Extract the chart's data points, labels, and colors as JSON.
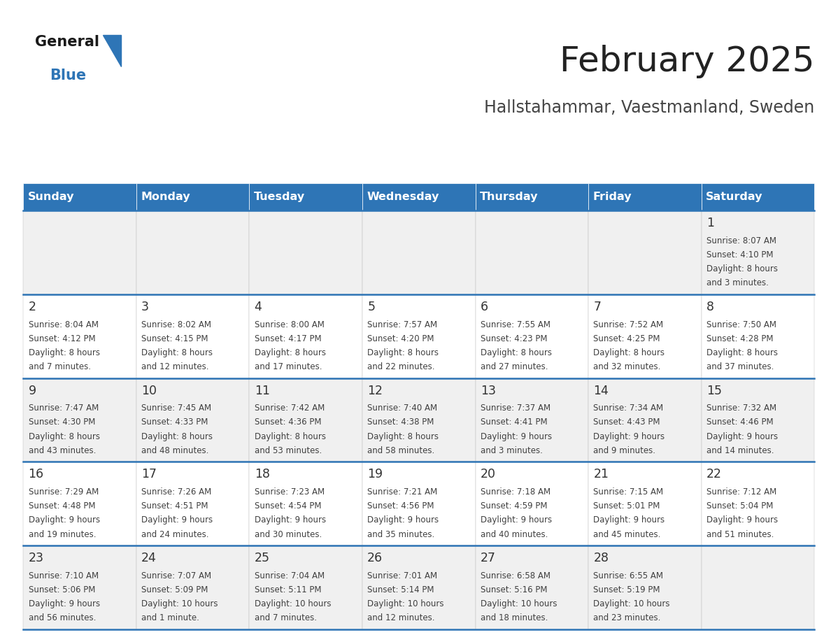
{
  "title": "February 2025",
  "subtitle": "Hallstahammar, Vaestmanland, Sweden",
  "days_of_week": [
    "Sunday",
    "Monday",
    "Tuesday",
    "Wednesday",
    "Thursday",
    "Friday",
    "Saturday"
  ],
  "header_bg": "#2E75B6",
  "header_text": "#FFFFFF",
  "row_bg_odd": "#FFFFFF",
  "row_bg_even": "#F0F0F0",
  "separator_color": "#2E75B6",
  "text_color": "#404040",
  "day_number_color": "#333333",
  "title_color": "#222222",
  "subtitle_color": "#444444",
  "calendar_data": [
    {
      "day": 1,
      "col": 6,
      "row": 0,
      "sunrise": "8:07 AM",
      "sunset": "4:10 PM",
      "daylight_line1": "8 hours",
      "daylight_line2": "and 3 minutes."
    },
    {
      "day": 2,
      "col": 0,
      "row": 1,
      "sunrise": "8:04 AM",
      "sunset": "4:12 PM",
      "daylight_line1": "8 hours",
      "daylight_line2": "and 7 minutes."
    },
    {
      "day": 3,
      "col": 1,
      "row": 1,
      "sunrise": "8:02 AM",
      "sunset": "4:15 PM",
      "daylight_line1": "8 hours",
      "daylight_line2": "and 12 minutes."
    },
    {
      "day": 4,
      "col": 2,
      "row": 1,
      "sunrise": "8:00 AM",
      "sunset": "4:17 PM",
      "daylight_line1": "8 hours",
      "daylight_line2": "and 17 minutes."
    },
    {
      "day": 5,
      "col": 3,
      "row": 1,
      "sunrise": "7:57 AM",
      "sunset": "4:20 PM",
      "daylight_line1": "8 hours",
      "daylight_line2": "and 22 minutes."
    },
    {
      "day": 6,
      "col": 4,
      "row": 1,
      "sunrise": "7:55 AM",
      "sunset": "4:23 PM",
      "daylight_line1": "8 hours",
      "daylight_line2": "and 27 minutes."
    },
    {
      "day": 7,
      "col": 5,
      "row": 1,
      "sunrise": "7:52 AM",
      "sunset": "4:25 PM",
      "daylight_line1": "8 hours",
      "daylight_line2": "and 32 minutes."
    },
    {
      "day": 8,
      "col": 6,
      "row": 1,
      "sunrise": "7:50 AM",
      "sunset": "4:28 PM",
      "daylight_line1": "8 hours",
      "daylight_line2": "and 37 minutes."
    },
    {
      "day": 9,
      "col": 0,
      "row": 2,
      "sunrise": "7:47 AM",
      "sunset": "4:30 PM",
      "daylight_line1": "8 hours",
      "daylight_line2": "and 43 minutes."
    },
    {
      "day": 10,
      "col": 1,
      "row": 2,
      "sunrise": "7:45 AM",
      "sunset": "4:33 PM",
      "daylight_line1": "8 hours",
      "daylight_line2": "and 48 minutes."
    },
    {
      "day": 11,
      "col": 2,
      "row": 2,
      "sunrise": "7:42 AM",
      "sunset": "4:36 PM",
      "daylight_line1": "8 hours",
      "daylight_line2": "and 53 minutes."
    },
    {
      "day": 12,
      "col": 3,
      "row": 2,
      "sunrise": "7:40 AM",
      "sunset": "4:38 PM",
      "daylight_line1": "8 hours",
      "daylight_line2": "and 58 minutes."
    },
    {
      "day": 13,
      "col": 4,
      "row": 2,
      "sunrise": "7:37 AM",
      "sunset": "4:41 PM",
      "daylight_line1": "9 hours",
      "daylight_line2": "and 3 minutes."
    },
    {
      "day": 14,
      "col": 5,
      "row": 2,
      "sunrise": "7:34 AM",
      "sunset": "4:43 PM",
      "daylight_line1": "9 hours",
      "daylight_line2": "and 9 minutes."
    },
    {
      "day": 15,
      "col": 6,
      "row": 2,
      "sunrise": "7:32 AM",
      "sunset": "4:46 PM",
      "daylight_line1": "9 hours",
      "daylight_line2": "and 14 minutes."
    },
    {
      "day": 16,
      "col": 0,
      "row": 3,
      "sunrise": "7:29 AM",
      "sunset": "4:48 PM",
      "daylight_line1": "9 hours",
      "daylight_line2": "and 19 minutes."
    },
    {
      "day": 17,
      "col": 1,
      "row": 3,
      "sunrise": "7:26 AM",
      "sunset": "4:51 PM",
      "daylight_line1": "9 hours",
      "daylight_line2": "and 24 minutes."
    },
    {
      "day": 18,
      "col": 2,
      "row": 3,
      "sunrise": "7:23 AM",
      "sunset": "4:54 PM",
      "daylight_line1": "9 hours",
      "daylight_line2": "and 30 minutes."
    },
    {
      "day": 19,
      "col": 3,
      "row": 3,
      "sunrise": "7:21 AM",
      "sunset": "4:56 PM",
      "daylight_line1": "9 hours",
      "daylight_line2": "and 35 minutes."
    },
    {
      "day": 20,
      "col": 4,
      "row": 3,
      "sunrise": "7:18 AM",
      "sunset": "4:59 PM",
      "daylight_line1": "9 hours",
      "daylight_line2": "and 40 minutes."
    },
    {
      "day": 21,
      "col": 5,
      "row": 3,
      "sunrise": "7:15 AM",
      "sunset": "5:01 PM",
      "daylight_line1": "9 hours",
      "daylight_line2": "and 45 minutes."
    },
    {
      "day": 22,
      "col": 6,
      "row": 3,
      "sunrise": "7:12 AM",
      "sunset": "5:04 PM",
      "daylight_line1": "9 hours",
      "daylight_line2": "and 51 minutes."
    },
    {
      "day": 23,
      "col": 0,
      "row": 4,
      "sunrise": "7:10 AM",
      "sunset": "5:06 PM",
      "daylight_line1": "9 hours",
      "daylight_line2": "and 56 minutes."
    },
    {
      "day": 24,
      "col": 1,
      "row": 4,
      "sunrise": "7:07 AM",
      "sunset": "5:09 PM",
      "daylight_line1": "10 hours",
      "daylight_line2": "and 1 minute."
    },
    {
      "day": 25,
      "col": 2,
      "row": 4,
      "sunrise": "7:04 AM",
      "sunset": "5:11 PM",
      "daylight_line1": "10 hours",
      "daylight_line2": "and 7 minutes."
    },
    {
      "day": 26,
      "col": 3,
      "row": 4,
      "sunrise": "7:01 AM",
      "sunset": "5:14 PM",
      "daylight_line1": "10 hours",
      "daylight_line2": "and 12 minutes."
    },
    {
      "day": 27,
      "col": 4,
      "row": 4,
      "sunrise": "6:58 AM",
      "sunset": "5:16 PM",
      "daylight_line1": "10 hours",
      "daylight_line2": "and 18 minutes."
    },
    {
      "day": 28,
      "col": 5,
      "row": 4,
      "sunrise": "6:55 AM",
      "sunset": "5:19 PM",
      "daylight_line1": "10 hours",
      "daylight_line2": "and 23 minutes."
    }
  ],
  "num_week_rows": 5,
  "fig_width": 11.88,
  "fig_height": 9.18,
  "dpi": 100
}
